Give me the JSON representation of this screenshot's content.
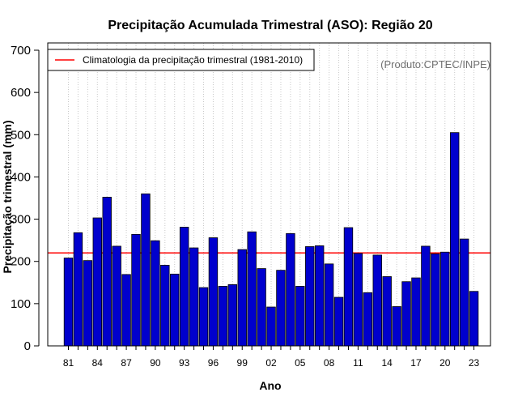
{
  "chart_data": {
    "type": "bar",
    "title": "Precipitação Acumulada Trimestral (ASO): Região 20",
    "xlabel": "Ano",
    "ylabel": "Precipitação trimestral (mm)",
    "credit": "(Produto:CPTEC/INPE)",
    "legend_position": "top-left",
    "legend": [
      {
        "label": "Climatologia da precipitação trimestral (1981-2010)",
        "color": "#ff0000",
        "style": "line"
      }
    ],
    "ylim": [
      0,
      700
    ],
    "yticks": [
      0,
      100,
      200,
      300,
      400,
      500,
      600,
      700
    ],
    "xtick_labels": [
      "81",
      "84",
      "87",
      "90",
      "93",
      "96",
      "99",
      "02",
      "05",
      "08",
      "11",
      "14",
      "17",
      "20",
      "23"
    ],
    "climatology": 220,
    "bar_color": "#0000cd",
    "grid": "vertical dotted",
    "categories": [
      "1981",
      "1982",
      "1983",
      "1984",
      "1985",
      "1986",
      "1987",
      "1988",
      "1989",
      "1990",
      "1991",
      "1992",
      "1993",
      "1994",
      "1995",
      "1996",
      "1997",
      "1998",
      "1999",
      "2000",
      "2001",
      "2002",
      "2003",
      "2004",
      "2005",
      "2006",
      "2007",
      "2008",
      "2009",
      "2010",
      "2011",
      "2012",
      "2013",
      "2014",
      "2015",
      "2016",
      "2017",
      "2018",
      "2019",
      "2020",
      "2021",
      "2022",
      "2023"
    ],
    "values": [
      208,
      268,
      202,
      303,
      352,
      236,
      169,
      264,
      360,
      249,
      191,
      170,
      281,
      232,
      138,
      256,
      141,
      145,
      228,
      270,
      183,
      92,
      179,
      266,
      141,
      235,
      237,
      194,
      115,
      280,
      219,
      126,
      215,
      164,
      93,
      152,
      161,
      236,
      218,
      222,
      505,
      253,
      129
    ]
  }
}
